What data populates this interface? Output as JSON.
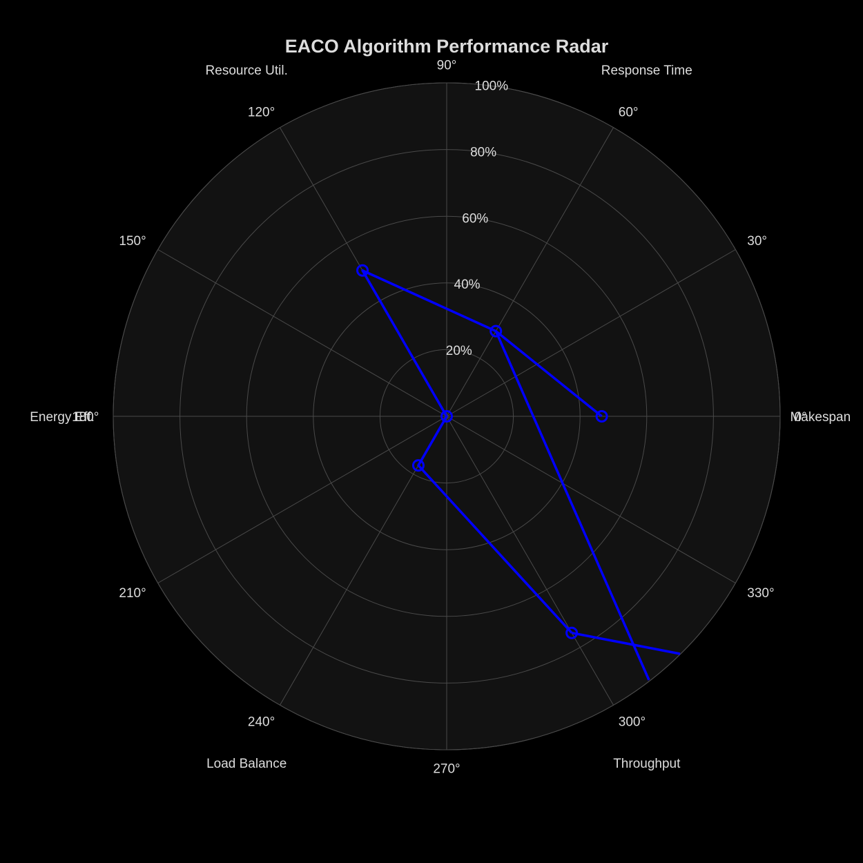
{
  "chart_data": {
    "type": "radar",
    "title": "EACO Algorithm Performance Radar",
    "categories": [
      "Makespan",
      "Response Time",
      "Resource Util.",
      "Energy Eff.",
      "Load Balance",
      "Throughput"
    ],
    "category_angles_deg": [
      0,
      60,
      120,
      180,
      240,
      300
    ],
    "angular_tick_labels": [
      "0°",
      "30°",
      "60°",
      "90°",
      "120°",
      "150°",
      "180°",
      "210°",
      "240°",
      "270°",
      "300°",
      "330°"
    ],
    "radial_tick_labels": [
      "20%",
      "40%",
      "60%",
      "80%",
      "100%"
    ],
    "radial_tick_values": [
      20,
      40,
      60,
      80,
      100
    ],
    "radial_range": [
      0,
      100
    ],
    "grid": true,
    "series": [
      {
        "values": [
          46.5,
          29.5,
          50.5,
          0,
          17,
          75
        ],
        "angles_deg": [
          0,
          60,
          120,
          180,
          240,
          300
        ],
        "closing_values": [
          0,
          0,
          0,
          0,
          0,
          0
        ],
        "closing_angles_deg": [
          355.4,
          5.5,
          16.4,
          46.7,
          62.5,
          331.3
        ],
        "color": "#0000ff"
      }
    ],
    "colors": {
      "background": "#000000",
      "plot_bg": "#121212",
      "grid": "#4a4a4a",
      "text": "#dddddd"
    }
  }
}
